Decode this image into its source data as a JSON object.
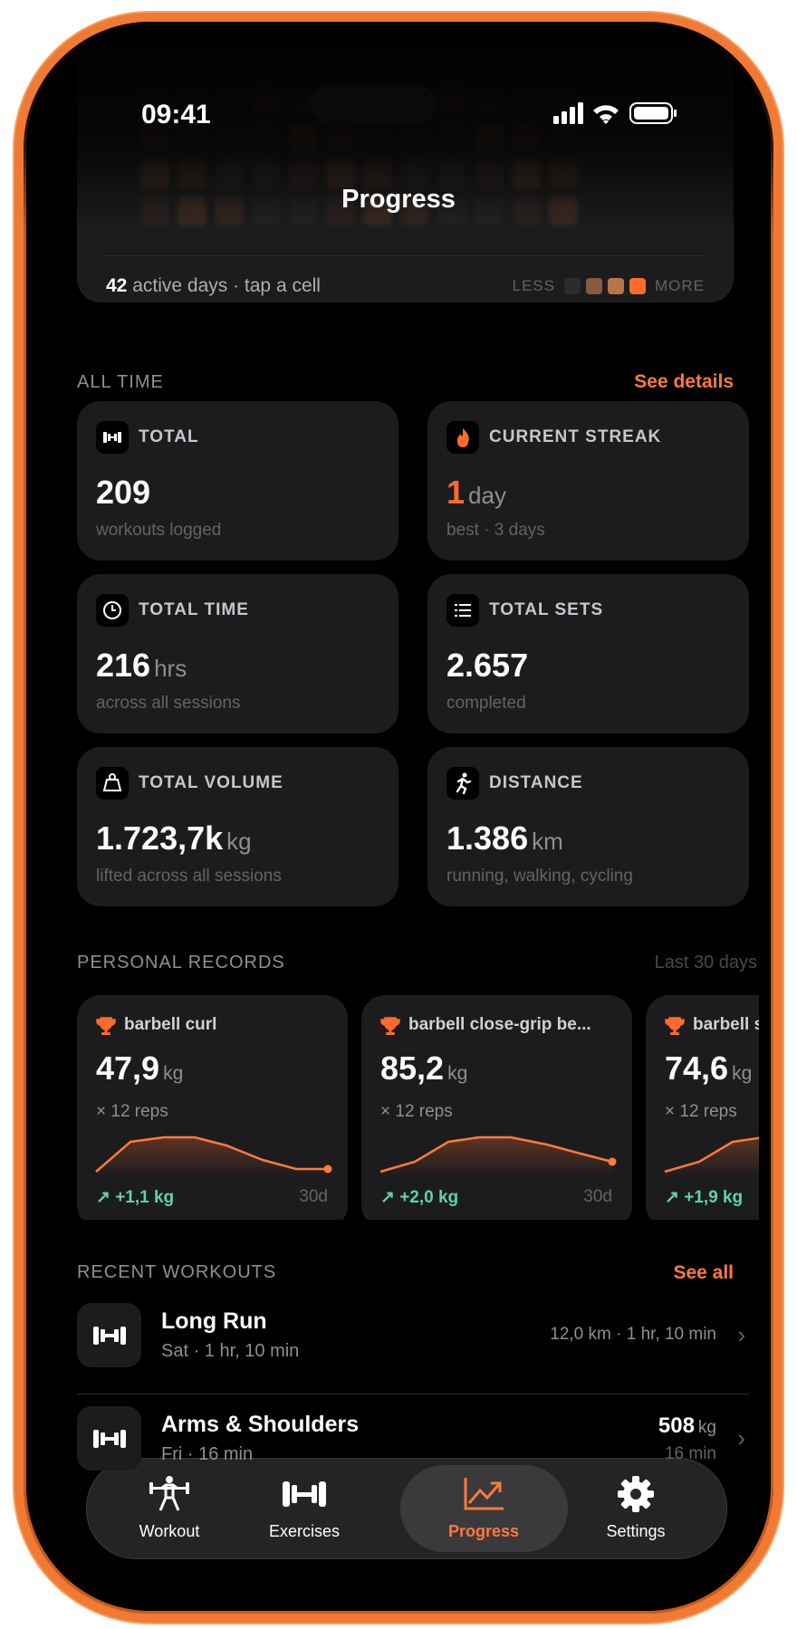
{
  "status_bar": {
    "time": "09:41"
  },
  "header": {
    "title": "Progress"
  },
  "heatmap": {
    "active_days": "42",
    "caption": "active days · tap a cell",
    "legend_less": "LESS",
    "legend_more": "MORE"
  },
  "all_time": {
    "title": "ALL TIME",
    "action": "See details",
    "cards": [
      {
        "label": "TOTAL",
        "value": "209",
        "sub": "workouts logged"
      },
      {
        "label": "CURRENT STREAK",
        "value": "1",
        "unit": "day",
        "sub": "best · 3 days"
      },
      {
        "label": "TOTAL TIME",
        "value": "216",
        "unit": "hrs",
        "sub": "across all sessions"
      },
      {
        "label": "TOTAL SETS",
        "value": "2.657",
        "sub": "completed"
      },
      {
        "label": "TOTAL VOLUME",
        "value": "1.723,7k",
        "unit": "kg",
        "sub": "lifted across all sessions"
      },
      {
        "label": "DISTANCE",
        "value": "1.386",
        "unit": "km",
        "sub": "running, walking, cycling"
      }
    ]
  },
  "personal_records": {
    "title": "PERSONAL RECORDS",
    "note": "Last 30 days",
    "items": [
      {
        "name": "barbell curl",
        "value": "47,9",
        "unit": "kg",
        "reps": "× 12 reps",
        "delta": "+1,1 kg",
        "period": "30d"
      },
      {
        "name": "barbell close-grip be...",
        "value": "85,2",
        "unit": "kg",
        "reps": "× 12 reps",
        "delta": "+2,0 kg",
        "period": "30d"
      },
      {
        "name": "barbell s",
        "value": "74,6",
        "unit": "kg",
        "reps": "× 12 reps",
        "delta": "+1,9 kg"
      }
    ]
  },
  "recent_workouts": {
    "title": "RECENT WORKOUTS",
    "action": "See all",
    "items": [
      {
        "name": "Long Run",
        "sub": "Sat · 1 hr, 10 min",
        "detail": "12,0 km · 1 hr, 10 min"
      },
      {
        "name": "Arms & Shoulders",
        "sub": "Fri · 16 min",
        "value": "508",
        "unit": "kg",
        "detail": "16 min"
      }
    ]
  },
  "tab_bar": {
    "tabs": [
      "Workout",
      "Exercises",
      "Progress",
      "Settings"
    ]
  }
}
